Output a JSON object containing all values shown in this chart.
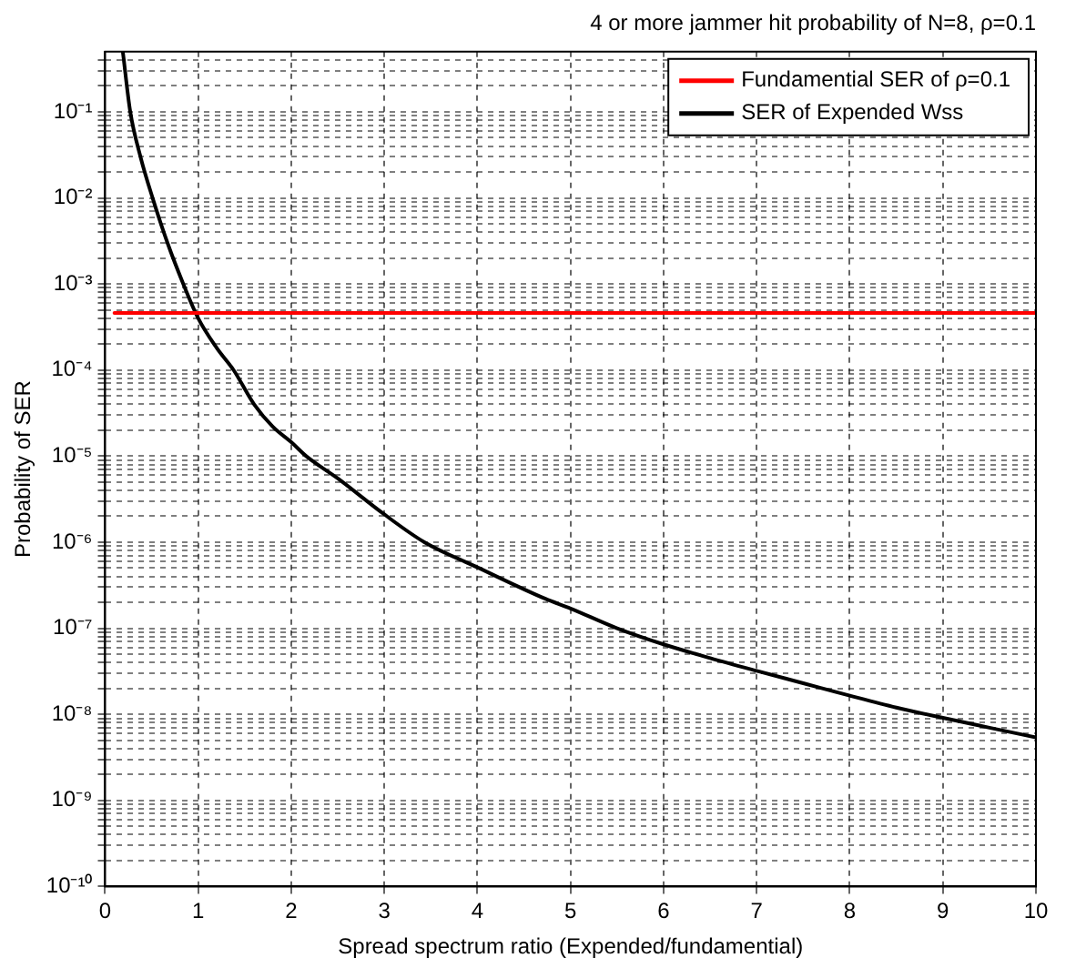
{
  "chart_data": {
    "type": "line",
    "title": "4 or more jammer hit probability of N=8, ρ=0.1",
    "xlabel": "Spread spectrum ratio (Expended/fundamential)",
    "ylabel": "Probability of SER",
    "series": [
      {
        "name": "Fundamential SER of ρ=0.1",
        "color": "#ff0000",
        "x": [
          0.1,
          10
        ],
        "values": [
          0.00046,
          0.00046
        ]
      },
      {
        "name": "SER of Expended Wss",
        "color": "#000000",
        "x": [
          0.19,
          0.27,
          0.38,
          0.51,
          0.67,
          0.84,
          1,
          1.2,
          1.38,
          1.6,
          1.8,
          2,
          2.16,
          2.5,
          3,
          3.43,
          4,
          4.73,
          5,
          5.5,
          6,
          6.5,
          7,
          7.5,
          8,
          8.5,
          9,
          9.5,
          10
        ],
        "values": [
          0.5,
          0.1,
          0.03,
          0.01,
          0.003,
          0.001,
          0.0004,
          0.00018,
          0.0001,
          4e-05,
          2.2e-05,
          1.45e-05,
          1e-05,
          5.5e-06,
          2.1e-06,
          1e-06,
          5.1e-07,
          2.2e-07,
          1.7e-07,
          1e-07,
          6.5e-08,
          4.5e-08,
          3.2e-08,
          2.3e-08,
          1.65e-08,
          1.2e-08,
          9.1e-09,
          7e-09,
          5.4e-09
        ]
      }
    ],
    "xlim": [
      0,
      10
    ],
    "xticks": [
      0,
      1,
      2,
      3,
      4,
      5,
      6,
      7,
      8,
      9,
      10
    ],
    "ylim": [
      1e-10,
      0.5
    ],
    "yticks": [
      {
        "value": 1e-10,
        "label": "10⁻¹⁰"
      },
      {
        "value": 2e-10,
        "label": null
      },
      {
        "value": 3e-10,
        "label": null
      },
      {
        "value": 4e-10,
        "label": null
      },
      {
        "value": 5e-10,
        "label": null
      },
      {
        "value": 6e-10,
        "label": null
      },
      {
        "value": 7e-10,
        "label": null
      },
      {
        "value": 8e-10,
        "label": null
      },
      {
        "value": 9e-10,
        "label": null
      },
      {
        "value": 1e-09,
        "label": "10⁻⁹"
      },
      {
        "value": 2e-09,
        "label": null
      },
      {
        "value": 3e-09,
        "label": null
      },
      {
        "value": 4e-09,
        "label": null
      },
      {
        "value": 5e-09,
        "label": null
      },
      {
        "value": 6e-09,
        "label": null
      },
      {
        "value": 7e-09,
        "label": null
      },
      {
        "value": 8e-09,
        "label": null
      },
      {
        "value": 9e-09,
        "label": null
      },
      {
        "value": 1e-08,
        "label": "10⁻⁸"
      },
      {
        "value": 2e-08,
        "label": null
      },
      {
        "value": 3e-08,
        "label": null
      },
      {
        "value": 4e-08,
        "label": null
      },
      {
        "value": 5e-08,
        "label": null
      },
      {
        "value": 6e-08,
        "label": null
      },
      {
        "value": 7e-08,
        "label": null
      },
      {
        "value": 8e-08,
        "label": null
      },
      {
        "value": 9e-08,
        "label": null
      },
      {
        "value": 1e-07,
        "label": "10⁻⁷"
      },
      {
        "value": 2e-07,
        "label": null
      },
      {
        "value": 3e-07,
        "label": null
      },
      {
        "value": 4e-07,
        "label": null
      },
      {
        "value": 5e-07,
        "label": null
      },
      {
        "value": 6e-07,
        "label": null
      },
      {
        "value": 7e-07,
        "label": null
      },
      {
        "value": 8e-07,
        "label": null
      },
      {
        "value": 9e-07,
        "label": null
      },
      {
        "value": 1e-06,
        "label": "10⁻⁶"
      },
      {
        "value": 2e-06,
        "label": null
      },
      {
        "value": 3e-06,
        "label": null
      },
      {
        "value": 4e-06,
        "label": null
      },
      {
        "value": 5e-06,
        "label": null
      },
      {
        "value": 6e-06,
        "label": null
      },
      {
        "value": 7e-06,
        "label": null
      },
      {
        "value": 8e-06,
        "label": null
      },
      {
        "value": 9e-06,
        "label": null
      },
      {
        "value": 1e-05,
        "label": "10⁻⁵"
      },
      {
        "value": 2e-05,
        "label": null
      },
      {
        "value": 3e-05,
        "label": null
      },
      {
        "value": 4e-05,
        "label": null
      },
      {
        "value": 5e-05,
        "label": null
      },
      {
        "value": 6e-05,
        "label": null
      },
      {
        "value": 7e-05,
        "label": null
      },
      {
        "value": 8e-05,
        "label": null
      },
      {
        "value": 9e-05,
        "label": null
      },
      {
        "value": 0.0001,
        "label": "10⁻⁴"
      },
      {
        "value": 0.0002,
        "label": null
      },
      {
        "value": 0.0003,
        "label": null
      },
      {
        "value": 0.0004,
        "label": null
      },
      {
        "value": 0.0005,
        "label": null
      },
      {
        "value": 0.0006,
        "label": null
      },
      {
        "value": 0.0007,
        "label": null
      },
      {
        "value": 0.0008,
        "label": null
      },
      {
        "value": 0.0009,
        "label": null
      },
      {
        "value": 0.001,
        "label": "10⁻³"
      },
      {
        "value": 0.002,
        "label": null
      },
      {
        "value": 0.003,
        "label": null
      },
      {
        "value": 0.004,
        "label": null
      },
      {
        "value": 0.005,
        "label": null
      },
      {
        "value": 0.006,
        "label": null
      },
      {
        "value": 0.007,
        "label": null
      },
      {
        "value": 0.008,
        "label": null
      },
      {
        "value": 0.009,
        "label": null
      },
      {
        "value": 0.01,
        "label": "10⁻²"
      },
      {
        "value": 0.02,
        "label": null
      },
      {
        "value": 0.03,
        "label": null
      },
      {
        "value": 0.04,
        "label": null
      },
      {
        "value": 0.05,
        "label": null
      },
      {
        "value": 0.06,
        "label": null
      },
      {
        "value": 0.07,
        "label": null
      },
      {
        "value": 0.08,
        "label": null
      },
      {
        "value": 0.09,
        "label": null
      },
      {
        "value": 0.1,
        "label": "10⁻¹"
      },
      {
        "value": 0.2,
        "label": null
      },
      {
        "value": 0.3,
        "label": null
      },
      {
        "value": 0.4,
        "label": null
      }
    ],
    "log": "y",
    "grid": true,
    "legend": "top right",
    "marker": "none",
    "line_style": "solid"
  }
}
